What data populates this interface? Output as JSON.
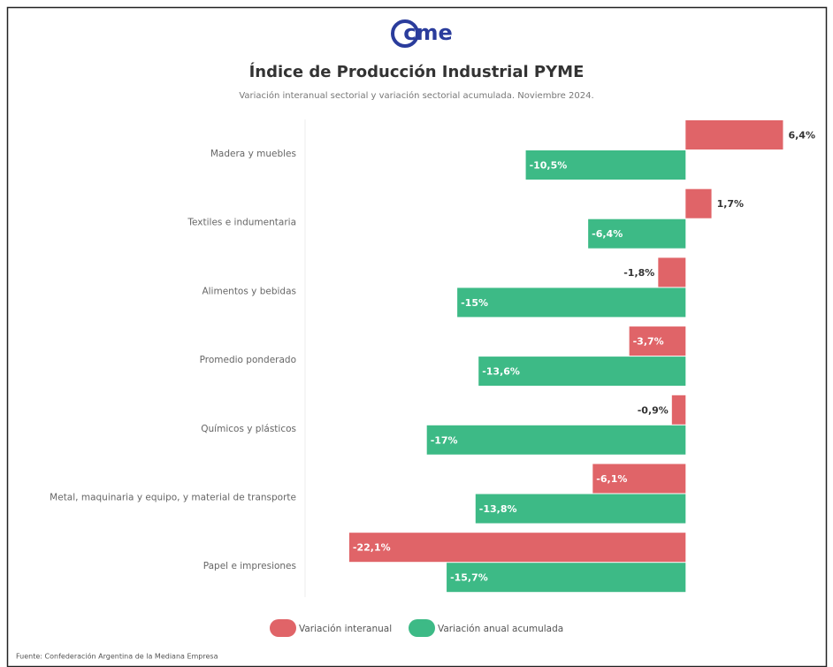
{
  "logo": "cme",
  "chart_data": {
    "type": "hbar",
    "title": "Índice de Producción Industrial PYME",
    "subtitle": "Variación interanual sectorial y variación sectorial acumulada. Noviembre 2024.",
    "source": "Fuente: Confederación Argentina de la Mediana Empresa",
    "categories": [
      "Madera y muebles",
      "Textiles e indumentaria",
      "Alimentos y bebidas",
      "Promedio ponderado",
      "Químicos y plásticos",
      "Metal, maquinaria y equipo, y material de transporte",
      "Papel e impresiones"
    ],
    "series": [
      {
        "name": "Variación interanual",
        "color": "#e06468",
        "values": [
          6.4,
          1.7,
          -1.8,
          -3.7,
          -0.9,
          -6.1,
          -22.1
        ],
        "value_labels": [
          "6,4%",
          "1,7%",
          "-1,8%",
          "-3,7%",
          "-0,9%",
          "-6,1%",
          "-22,1%"
        ]
      },
      {
        "name": "Variación anual acumulada",
        "color": "#3dba86",
        "values": [
          -10.5,
          -6.4,
          -15,
          -13.6,
          -17,
          -13.8,
          -15.7
        ],
        "value_labels": [
          "-10,5%",
          "-6,4%",
          "-15%",
          "-13,6%",
          "-17%",
          "-13,8%",
          "-15,7%"
        ]
      }
    ],
    "xlim": [
      -25,
      8
    ],
    "legend": "bottom"
  }
}
